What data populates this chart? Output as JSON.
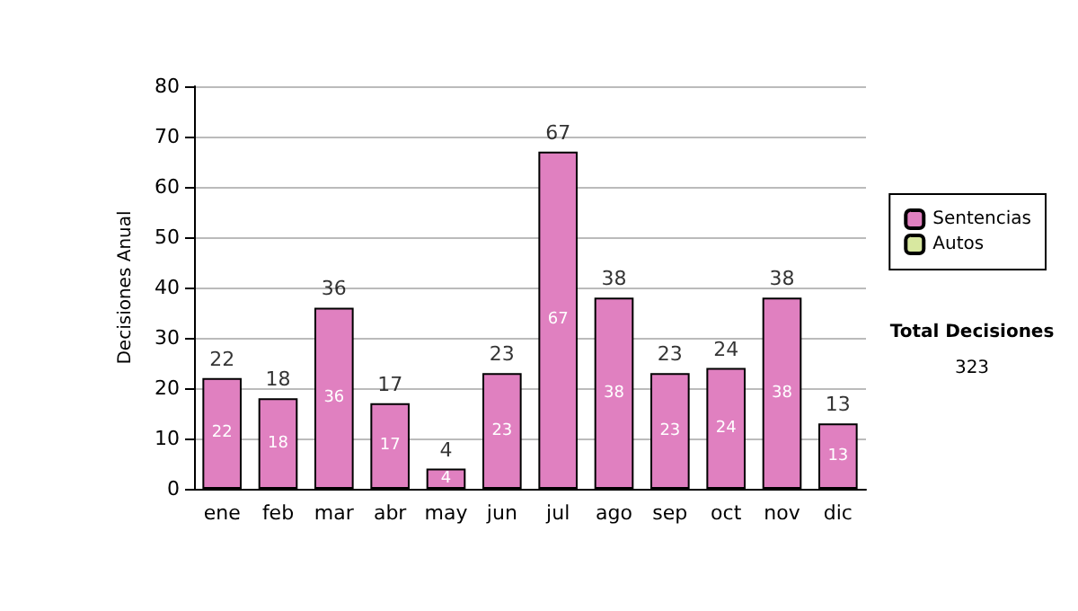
{
  "chart_data": {
    "type": "bar",
    "stacked": true,
    "ylabel": "Decisiones Anual",
    "categories": [
      "ene",
      "feb",
      "mar",
      "abr",
      "may",
      "jun",
      "jul",
      "ago",
      "sep",
      "oct",
      "nov",
      "dic"
    ],
    "series": [
      {
        "name": "Sentencias",
        "color": "#e080c0",
        "values": [
          22,
          18,
          36,
          17,
          4,
          23,
          67,
          38,
          23,
          24,
          38,
          13
        ],
        "value_labels": [
          "22",
          "18",
          "36",
          "17",
          "4",
          "23",
          "67",
          "38",
          "23",
          "24",
          "38",
          "13"
        ]
      },
      {
        "name": "Autos",
        "color": "#d8e8a0",
        "values": [
          0,
          0,
          0,
          0,
          0,
          0,
          0,
          0,
          0,
          0,
          0,
          0
        ]
      }
    ],
    "totals": [
      "22",
      "18",
      "36",
      "17",
      "4",
      "23",
      "67",
      "38",
      "23",
      "24",
      "38",
      "13"
    ],
    "ylim": [
      0,
      80
    ],
    "yticks": [
      0,
      10,
      20,
      30,
      40,
      50,
      60,
      70,
      80
    ],
    "grid": "y",
    "legend": "right",
    "annotations": [
      "Total Decisiones",
      "323"
    ]
  }
}
